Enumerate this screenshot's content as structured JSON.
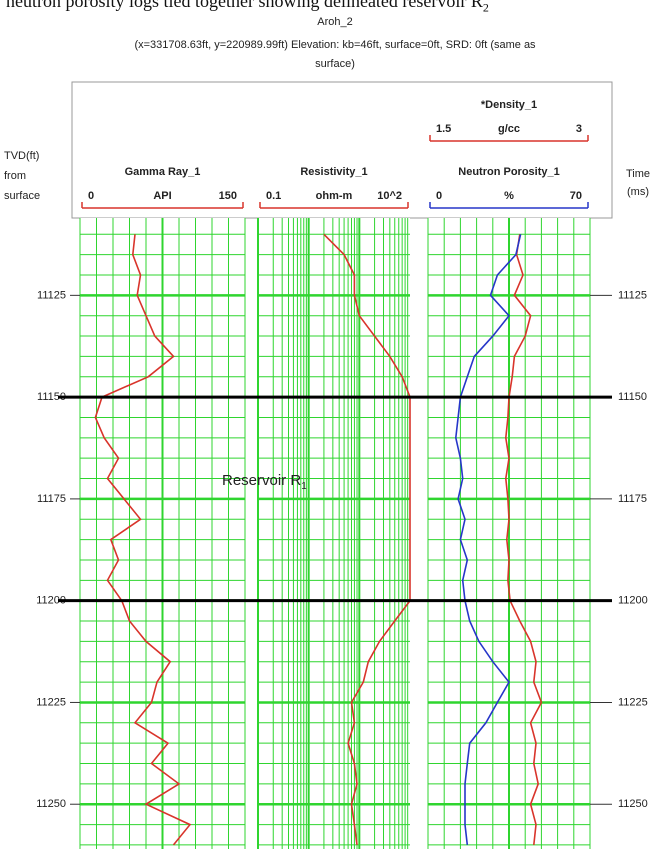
{
  "chart_data": {
    "type": "well-log",
    "caption": {
      "text": "neutron porosity logs tied together showing delineated reservoir R",
      "subscript": "2"
    },
    "title": "Aroh_2",
    "subtitle": "(x=331708.63ft, y=220989.99ft) Elevation: kb=46ft, surface=0ft, SRD: 0ft (same as surface)",
    "y_label": "TVD(ft) from surface",
    "y2_label": "Time (ms)",
    "ylim": [
      11106,
      11261
    ],
    "yticks": [
      11125,
      11150,
      11175,
      11200,
      11225,
      11250
    ],
    "depth": [
      11110,
      11115,
      11120,
      11125,
      11130,
      11135,
      11140,
      11145,
      11150,
      11155,
      11160,
      11165,
      11170,
      11175,
      11180,
      11185,
      11190,
      11195,
      11200,
      11205,
      11210,
      11215,
      11220,
      11225,
      11230,
      11235,
      11240,
      11245,
      11250,
      11255,
      11260
    ],
    "markers": [
      11150,
      11200
    ],
    "annotation": {
      "text": "Reservoir R",
      "subscript": "1"
    },
    "grid": true,
    "tracks": [
      {
        "log": false,
        "series": [
          {
            "name": "Gamma Ray_1",
            "unit": "API",
            "color": "#d9342b",
            "xlim": [
              0,
              150
            ],
            "xticks": [
              0,
              150
            ],
            "values": [
              50,
              48,
              55,
              52,
              60,
              68,
              85,
              62,
              20,
              14,
              22,
              35,
              25,
              40,
              55,
              28,
              35,
              25,
              38,
              45,
              60,
              82,
              70,
              65,
              50,
              80,
              65,
              90,
              60,
              100,
              85
            ]
          }
        ]
      },
      {
        "log": true,
        "series": [
          {
            "name": "Resistivity_1",
            "unit": "ohm-m",
            "color": "#d9342b",
            "xlim": [
              0.1,
              100
            ],
            "xticks": [
              0.1,
              {
                "value": 100,
                "label": "10^2"
              }
            ],
            "values": [
              2,
              5,
              8,
              8,
              10,
              20,
              40,
              70,
              100,
              100,
              100,
              100,
              100,
              100,
              100,
              100,
              100,
              100,
              100,
              50,
              25,
              15,
              12,
              7,
              8,
              6,
              8,
              9,
              7,
              8,
              9
            ]
          }
        ]
      },
      {
        "log": false,
        "series": [
          {
            "name": "*Density_1",
            "unit": "g/cc",
            "color": "#d9342b",
            "xlim": [
              1.5,
              3
            ],
            "xticks": [
              1.5,
              3
            ],
            "values": [
              2.35,
              2.32,
              2.38,
              2.3,
              2.45,
              2.4,
              2.3,
              2.28,
              2.25,
              2.24,
              2.22,
              2.25,
              2.22,
              2.24,
              2.25,
              2.23,
              2.25,
              2.24,
              2.26,
              2.35,
              2.45,
              2.5,
              2.48,
              2.55,
              2.45,
              2.5,
              2.48,
              2.52,
              2.45,
              2.5,
              2.48
            ]
          },
          {
            "name": "Neutron Porosity_1",
            "unit": "%",
            "color": "#2636c9",
            "xlim": [
              0,
              70
            ],
            "xticks": [
              0,
              70
            ],
            "values": [
              40,
              38,
              30,
              27,
              35,
              28,
              20,
              17,
              14,
              13,
              12,
              14,
              15,
              13,
              16,
              14,
              17,
              15,
              16,
              18,
              22,
              28,
              35,
              30,
              25,
              18,
              17,
              16,
              16,
              16,
              17
            ]
          }
        ]
      }
    ]
  }
}
